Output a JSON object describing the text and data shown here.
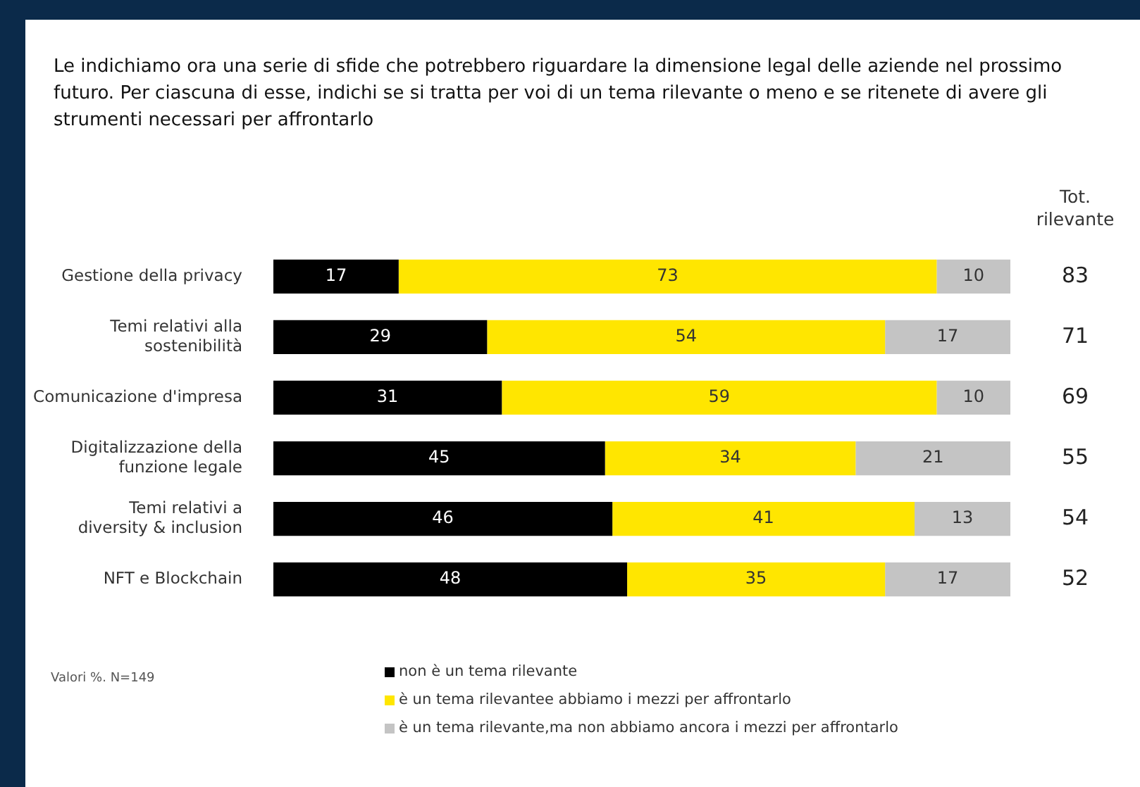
{
  "chart_data": {
    "type": "bar",
    "orientation": "horizontal",
    "stacked": true,
    "title": "Le indichiamo ora una serie di sfide che potrebbero riguardare la dimensione legal delle aziende nel prossimo futuro. Per ciascuna di esse, indichi se si tratta per voi di un tema rilevante o meno e se ritenete di avere gli strumenti necessari per affrontarlo",
    "categories": [
      "Gestione della privacy",
      "Temi relativi alla sostenibilità",
      "Comunicazione d'impresa",
      "Digitalizzazione della funzione legale",
      "Temi relativi a diversity & inclusion",
      "NFT e Blockchain"
    ],
    "series": [
      {
        "name": "non è un tema rilevante",
        "color": "#000000",
        "values": [
          17,
          29,
          31,
          45,
          46,
          48
        ]
      },
      {
        "name": "è un tema rilevantee abbiamo i mezzi per affrontarlo",
        "color": "#ffe600",
        "values": [
          73,
          54,
          59,
          34,
          41,
          35
        ]
      },
      {
        "name": "è un tema rilevante,ma non abbiamo ancora i mezzi per affrontarlo",
        "color": "#c4c4c4",
        "values": [
          10,
          17,
          10,
          21,
          13,
          17
        ]
      }
    ],
    "annotations": [
      "Tot. rilevante",
      "Valori %. N=149",
      "83",
      "71",
      "69",
      "55",
      "54",
      "52"
    ],
    "data_labels": true,
    "legend": "bottom",
    "tick_labels": "y",
    "grid": false
  }
}
